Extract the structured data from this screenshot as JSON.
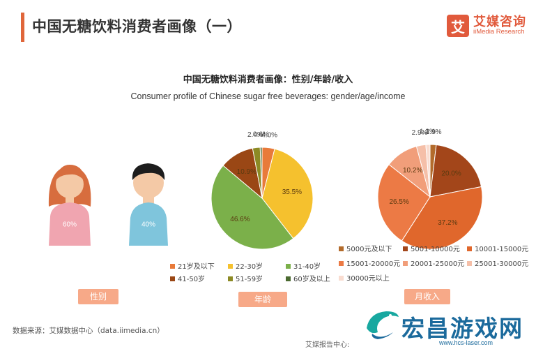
{
  "header": {
    "title": "中国无糖饮料消费者画像（一）"
  },
  "brand": {
    "mark": "艾",
    "name_cn": "艾媒咨询",
    "name_en": "iiMedia Research"
  },
  "chart_data": [
    {
      "type": "pie",
      "name": "gender",
      "title": "中国无糖饮料消费者画像：性别/年龄/收入",
      "subtitle": "Consumer profile of Chinese sugar free beverages: gender/age/income",
      "tag": "性别",
      "slices": [
        {
          "label": "",
          "value": 60,
          "display": "60%",
          "color": "#f0a5b0"
        },
        {
          "label": "",
          "value": 40,
          "display": "40%",
          "color": "#7fc5dc"
        }
      ]
    },
    {
      "type": "pie",
      "name": "age",
      "tag": "年龄",
      "slices": [
        {
          "label": "21岁及以下",
          "value": 4.0,
          "display": "4.0%",
          "color": "#e87a3a"
        },
        {
          "label": "22-30岁",
          "value": 35.5,
          "display": "35.5%",
          "color": "#f5c12e"
        },
        {
          "label": "31-40岁",
          "value": 46.6,
          "display": "46.6%",
          "color": "#7bb04a"
        },
        {
          "label": "41-50岁",
          "value": 10.9,
          "display": "10.9%",
          "color": "#9a4715"
        },
        {
          "label": "51-59岁",
          "value": 2.4,
          "display": "2.4%",
          "color": "#8c8a24"
        },
        {
          "label": "60岁及以上",
          "value": 0.6,
          "display": "0.6%",
          "color": "#4a6a30"
        }
      ]
    },
    {
      "type": "pie",
      "name": "income",
      "tag": "月收入",
      "slices": [
        {
          "label": "5000元及以下",
          "value": 1.9,
          "display": "1.9%",
          "color": "#b36b2b"
        },
        {
          "label": "5001-10000元",
          "value": 20.0,
          "display": "20.0%",
          "color": "#a3461a"
        },
        {
          "label": "10001-15000元",
          "value": 37.2,
          "display": "37.2%",
          "color": "#e0672c"
        },
        {
          "label": "15001-20000元",
          "value": 26.5,
          "display": "26.5%",
          "color": "#ec7a45"
        },
        {
          "label": "20001-25000元",
          "value": 10.2,
          "display": "10.2%",
          "color": "#f19e7a"
        },
        {
          "label": "25001-30000元",
          "value": 2.9,
          "display": "2.9%",
          "color": "#f5bfa8"
        },
        {
          "label": "30000元以上",
          "value": 1.3,
          "display": "1.3%",
          "color": "#f9dcd0"
        }
      ]
    }
  ],
  "source_text": "数据来源：艾媒数据中心（data.iimedia.cn）",
  "footer_text": "艾媒报告中心:",
  "watermark": {
    "name_cn": "宏昌游戏网",
    "url": "www.hcs-laser.com"
  }
}
